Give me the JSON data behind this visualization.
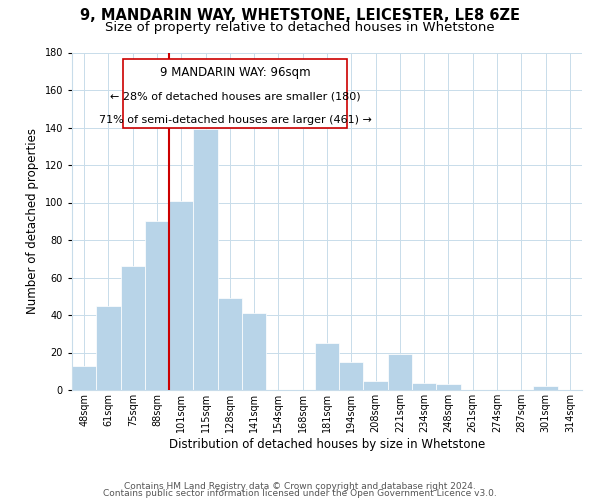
{
  "title_line1": "9, MANDARIN WAY, WHETSTONE, LEICESTER, LE8 6ZE",
  "title_line2": "Size of property relative to detached houses in Whetstone",
  "xlabel": "Distribution of detached houses by size in Whetstone",
  "ylabel": "Number of detached properties",
  "categories": [
    "48sqm",
    "61sqm",
    "75sqm",
    "88sqm",
    "101sqm",
    "115sqm",
    "128sqm",
    "141sqm",
    "154sqm",
    "168sqm",
    "181sqm",
    "194sqm",
    "208sqm",
    "221sqm",
    "234sqm",
    "248sqm",
    "261sqm",
    "274sqm",
    "287sqm",
    "301sqm",
    "314sqm"
  ],
  "values": [
    13,
    45,
    66,
    90,
    101,
    139,
    49,
    41,
    0,
    0,
    25,
    15,
    5,
    19,
    4,
    3,
    0,
    0,
    0,
    2,
    0
  ],
  "bar_color": "#b8d4e8",
  "vline_color": "#cc0000",
  "vline_index": 4,
  "annotation_title": "9 MANDARIN WAY: 96sqm",
  "annotation_line2": "← 28% of detached houses are smaller (180)",
  "annotation_line3": "71% of semi-detached houses are larger (461) →",
  "ylim": [
    0,
    180
  ],
  "yticks": [
    0,
    20,
    40,
    60,
    80,
    100,
    120,
    140,
    160,
    180
  ],
  "footer_line1": "Contains HM Land Registry data © Crown copyright and database right 2024.",
  "footer_line2": "Contains public sector information licensed under the Open Government Licence v3.0.",
  "bg_color": "#ffffff",
  "grid_color": "#c8dcea",
  "title_fontsize": 10.5,
  "subtitle_fontsize": 9.5,
  "axis_label_fontsize": 8.5,
  "tick_fontsize": 7,
  "annotation_fontsize": 8.5,
  "footer_fontsize": 6.5
}
